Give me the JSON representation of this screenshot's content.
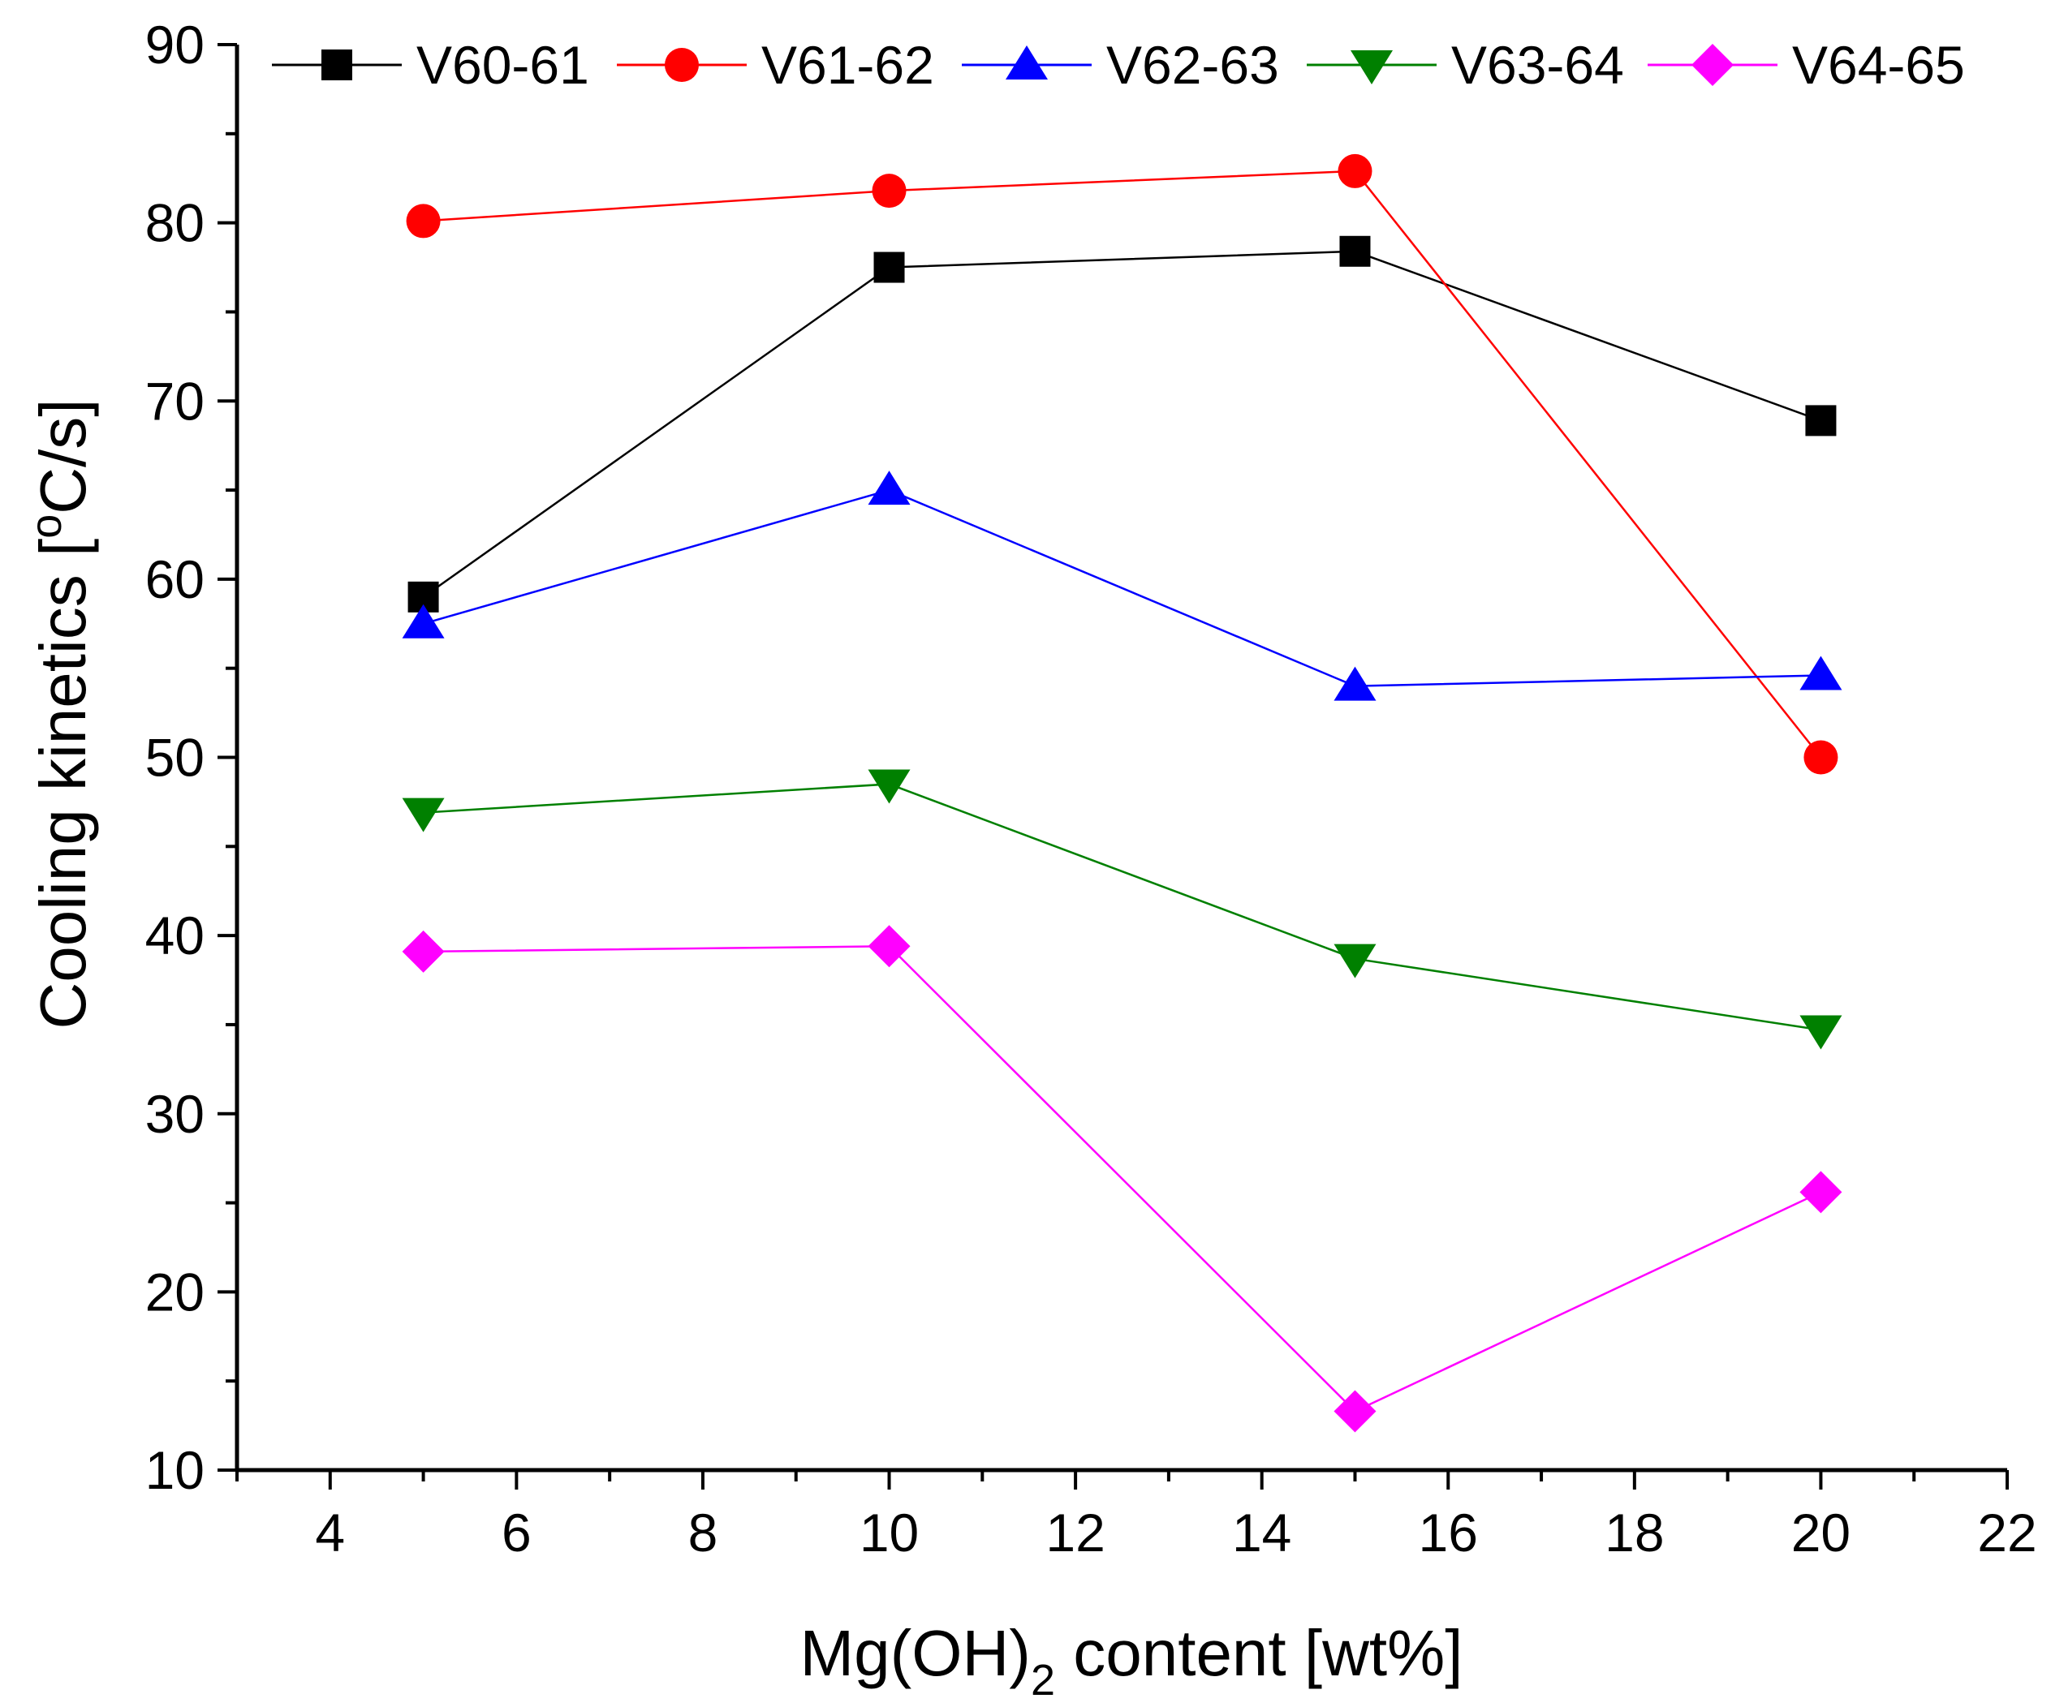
{
  "chart_data": {
    "type": "line",
    "title": "",
    "xlabel": "Mg(OH)",
    "xlabel_sub": "2",
    "xlabel_rest": " content [wt%]",
    "ylabel": "Cooling kinetics [",
    "ylabel_sup": "o",
    "ylabel_rest": "C/s]",
    "xlim": [
      3,
      22
    ],
    "ylim": [
      10,
      90
    ],
    "xticks": [
      4,
      6,
      8,
      10,
      12,
      14,
      16,
      18,
      20,
      22
    ],
    "yticks": [
      10,
      20,
      30,
      40,
      50,
      60,
      70,
      80,
      90
    ],
    "x": [
      5,
      10,
      15,
      20
    ],
    "legend_position": "top",
    "series": [
      {
        "name": "V60-61",
        "color": "#000000",
        "marker": "square",
        "values": [
          59.0,
          77.5,
          78.4,
          68.9
        ]
      },
      {
        "name": "V61-62",
        "color": "#ff0000",
        "marker": "circle",
        "values": [
          80.1,
          81.8,
          82.9,
          50.0
        ]
      },
      {
        "name": "V62-63",
        "color": "#0000ff",
        "marker": "triangle-up",
        "values": [
          57.5,
          65.0,
          54.0,
          54.6
        ]
      },
      {
        "name": "V63-64",
        "color": "#008000",
        "marker": "triangle-down",
        "values": [
          46.9,
          48.5,
          38.7,
          34.7
        ]
      },
      {
        "name": "V64-65",
        "color": "#ff00ff",
        "marker": "diamond",
        "values": [
          39.1,
          39.4,
          13.3,
          25.6
        ]
      }
    ]
  }
}
